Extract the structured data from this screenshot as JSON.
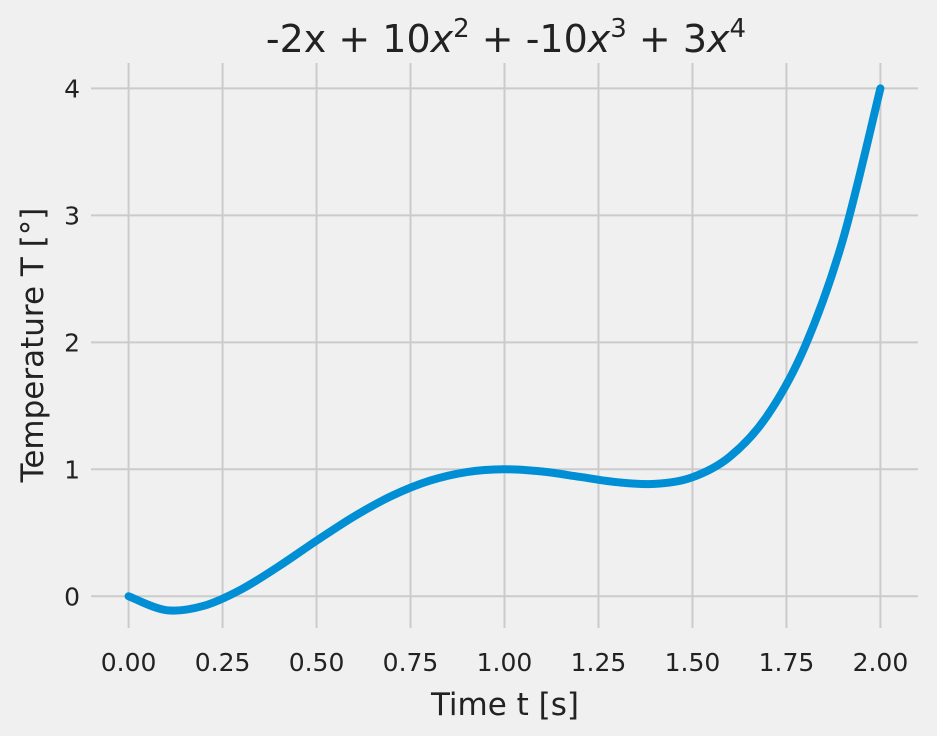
{
  "chart_data": {
    "type": "line",
    "title": {
      "segments": [
        {
          "text": "-2x + 10"
        },
        {
          "text": "x",
          "italic": true
        },
        {
          "text": "2",
          "sup": true
        },
        {
          "text": " + -10"
        },
        {
          "text": "x",
          "italic": true
        },
        {
          "text": "3",
          "sup": true
        },
        {
          "text": " + 3"
        },
        {
          "text": "x",
          "italic": true
        },
        {
          "text": "4",
          "sup": true
        }
      ]
    },
    "xlabel": "Time t [s]",
    "ylabel": "Temperature T [°]",
    "xlim": [
      -0.1,
      2.1
    ],
    "ylim": [
      -0.25,
      4.2
    ],
    "x_ticks": [
      0,
      0.25,
      0.5,
      0.75,
      1.0,
      1.25,
      1.5,
      1.75,
      2.0
    ],
    "x_tick_labels": [
      "0.00",
      "0.25",
      "0.50",
      "0.75",
      "1.00",
      "1.25",
      "1.50",
      "1.75",
      "2.00"
    ],
    "y_ticks": [
      0,
      1,
      2,
      3,
      4
    ],
    "y_tick_labels": [
      "0",
      "1",
      "2",
      "3",
      "4"
    ],
    "grid": true,
    "series": [
      {
        "color": "#008fd5",
        "x": [
          0,
          0.1,
          0.2,
          0.3,
          0.4,
          0.5,
          0.6,
          0.7,
          0.8,
          0.9,
          1.0,
          1.1,
          1.2,
          1.3,
          1.4,
          1.5,
          1.6,
          1.7,
          1.8,
          1.9,
          2.0
        ],
        "y": [
          0,
          -0.1097,
          -0.0752,
          0.0543,
          0.2368,
          0.4375,
          0.6288,
          0.7903,
          0.9088,
          0.9783,
          1.0,
          0.9823,
          0.9408,
          0.8983,
          0.8848,
          0.9375,
          1.1008,
          1.4263,
          1.9728,
          2.8063,
          4.0
        ]
      }
    ]
  }
}
